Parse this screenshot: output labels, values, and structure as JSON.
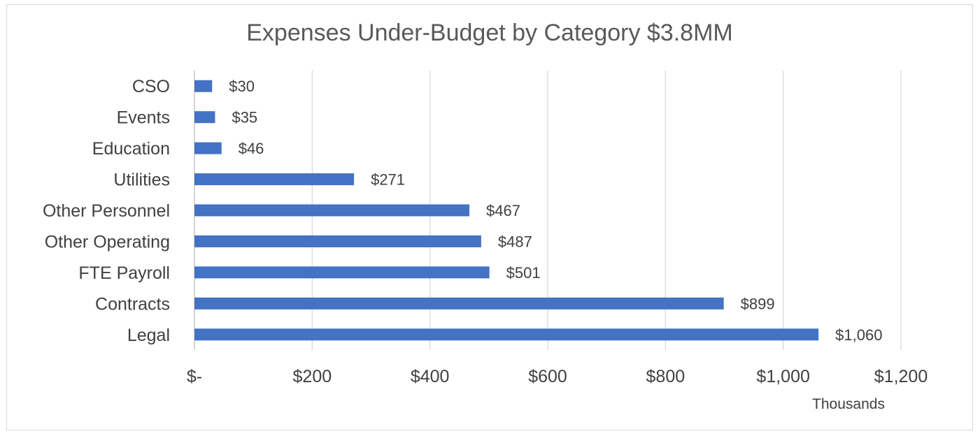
{
  "chart_data": {
    "type": "bar",
    "orientation": "horizontal",
    "title": "Expenses Under-Budget by Category $3.8MM",
    "categories": [
      "CSO",
      "Events",
      "Education",
      "Utilities",
      "Other Personnel",
      "Other Operating",
      "FTE Payroll",
      "Contracts",
      "Legal"
    ],
    "values": [
      30,
      35,
      46,
      271,
      467,
      487,
      501,
      899,
      1060
    ],
    "data_labels": [
      "$30",
      "$35",
      "$46",
      "$271",
      "$467",
      "$487",
      "$501",
      "$899",
      "$1,060"
    ],
    "xlim": [
      0,
      1200
    ],
    "x_ticks": [
      0,
      200,
      400,
      600,
      800,
      1000,
      1200
    ],
    "x_tick_labels": [
      "$-",
      "$200",
      "$400",
      "$600",
      "$800",
      "$1,000",
      "$1,200"
    ],
    "x_unit_label": "Thousands",
    "grid": true,
    "legend": "none",
    "bar_color": "#4472c4",
    "grid_color": "#d9d9d9"
  }
}
